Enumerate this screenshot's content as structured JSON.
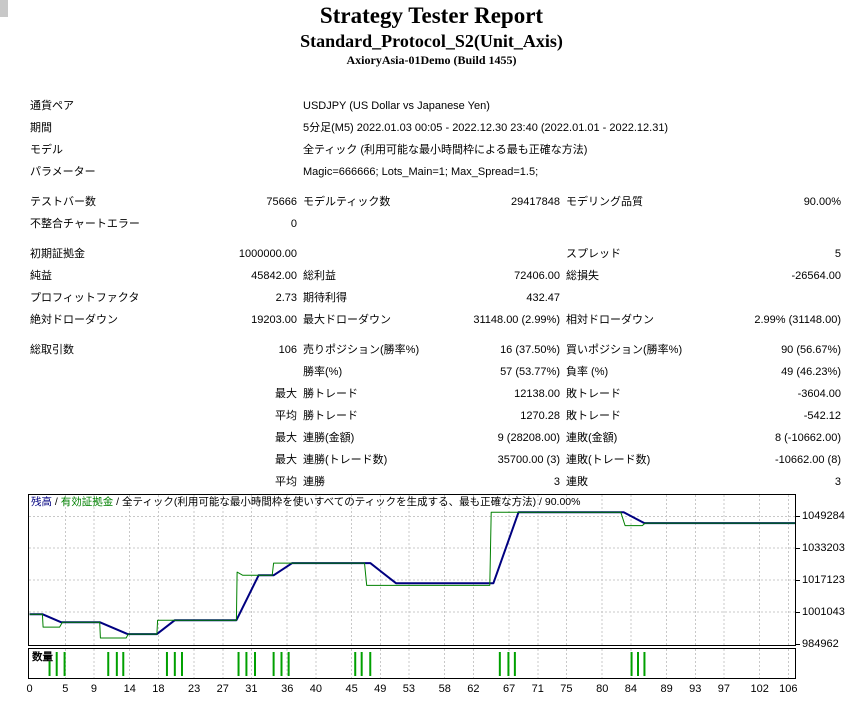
{
  "header": {
    "title": "Strategy Tester Report",
    "subtitle": "Standard_Protocol_S2(Unit_Axis)",
    "server": "AxioryAsia-01Demo (Build 1455)"
  },
  "report": {
    "rows": [
      {
        "cells": [
          {
            "c": "label",
            "t": "通貨ペア"
          },
          {
            "c": "wide",
            "t": "USDJPY (US Dollar vs Japanese Yen)"
          }
        ]
      },
      {
        "cells": [
          {
            "c": "label",
            "t": "期間"
          },
          {
            "c": "wide",
            "t": "5分足(M5) 2022.01.03 00:05 - 2022.12.30 23:40 (2022.01.01 - 2022.12.31)"
          }
        ]
      },
      {
        "cells": [
          {
            "c": "label",
            "t": "モデル"
          },
          {
            "c": "wide",
            "t": "全ティック (利用可能な最小時間枠による最も正確な方法)"
          }
        ]
      },
      {
        "cells": [
          {
            "c": "label",
            "t": "パラメーター"
          },
          {
            "c": "wide",
            "t": "Magic=666666; Lots_Main=1; Max_Spread=1.5;"
          }
        ]
      },
      {
        "gap": true
      },
      {
        "cells": [
          {
            "c": "l1",
            "t": "テストバー数"
          },
          {
            "c": "v1",
            "t": "75666"
          },
          {
            "c": "l2",
            "t": "モデルティック数"
          },
          {
            "c": "v2",
            "t": "29417848"
          },
          {
            "c": "l3",
            "t": "モデリング品質"
          },
          {
            "c": "v3",
            "t": "90.00%"
          }
        ]
      },
      {
        "cells": [
          {
            "c": "l1",
            "t": "不整合チャートエラー"
          },
          {
            "c": "v1",
            "t": "0"
          }
        ]
      },
      {
        "gap": true
      },
      {
        "cells": [
          {
            "c": "l1",
            "t": "初期証拠金"
          },
          {
            "c": "v1",
            "t": "1000000.00"
          },
          {
            "c": "l3",
            "t": "スプレッド"
          },
          {
            "c": "v3",
            "t": "5"
          }
        ]
      },
      {
        "cells": [
          {
            "c": "l1",
            "t": "純益"
          },
          {
            "c": "v1",
            "t": "45842.00"
          },
          {
            "c": "l2",
            "t": "総利益"
          },
          {
            "c": "v2",
            "t": "72406.00"
          },
          {
            "c": "l3",
            "t": "総損失"
          },
          {
            "c": "v3",
            "t": "-26564.00"
          }
        ]
      },
      {
        "cells": [
          {
            "c": "l1",
            "t": "プロフィットファクタ"
          },
          {
            "c": "v1",
            "t": "2.73"
          },
          {
            "c": "l2",
            "t": "期待利得"
          },
          {
            "c": "v2",
            "t": "432.47"
          }
        ]
      },
      {
        "cells": [
          {
            "c": "l1",
            "t": "絶対ドローダウン"
          },
          {
            "c": "v1",
            "t": "19203.00"
          },
          {
            "c": "l2",
            "t": "最大ドローダウン"
          },
          {
            "c": "v2",
            "t": "31148.00 (2.99%)"
          },
          {
            "c": "l3",
            "t": "相対ドローダウン"
          },
          {
            "c": "v3",
            "t": "2.99% (31148.00)"
          }
        ]
      },
      {
        "gap": true
      },
      {
        "cells": [
          {
            "c": "l1",
            "t": "総取引数"
          },
          {
            "c": "v1",
            "t": "106"
          },
          {
            "c": "l2",
            "t": "売りポジション(勝率%)"
          },
          {
            "c": "v2",
            "t": "16 (37.50%)"
          },
          {
            "c": "l3",
            "t": "買いポジション(勝率%)"
          },
          {
            "c": "v3",
            "t": "90 (56.67%)"
          }
        ]
      },
      {
        "cells": [
          {
            "c": "l2",
            "t": "勝率(%)"
          },
          {
            "c": "v2",
            "t": "57 (53.77%)"
          },
          {
            "c": "l3",
            "t": "負率 (%)"
          },
          {
            "c": "v3",
            "t": "49 (46.23%)"
          }
        ]
      },
      {
        "cells": [
          {
            "c": "v1",
            "t": "最大"
          },
          {
            "c": "l2",
            "t": "勝トレード"
          },
          {
            "c": "v2",
            "t": "12138.00"
          },
          {
            "c": "l3",
            "t": "敗トレード"
          },
          {
            "c": "v3",
            "t": "-3604.00"
          }
        ]
      },
      {
        "cells": [
          {
            "c": "v1",
            "t": "平均"
          },
          {
            "c": "l2",
            "t": "勝トレード"
          },
          {
            "c": "v2",
            "t": "1270.28"
          },
          {
            "c": "l3",
            "t": "敗トレード"
          },
          {
            "c": "v3",
            "t": "-542.12"
          }
        ]
      },
      {
        "cells": [
          {
            "c": "v1",
            "t": "最大"
          },
          {
            "c": "l2",
            "t": "連勝(金額)"
          },
          {
            "c": "v2",
            "t": "9 (28208.00)"
          },
          {
            "c": "l3",
            "t": "連敗(金額)"
          },
          {
            "c": "v3",
            "t": "8 (-10662.00)"
          }
        ]
      },
      {
        "cells": [
          {
            "c": "v1",
            "t": "最大"
          },
          {
            "c": "l2",
            "t": "連勝(トレード数)"
          },
          {
            "c": "v2",
            "t": "35700.00 (3)"
          },
          {
            "c": "l3",
            "t": "連敗(トレード数)"
          },
          {
            "c": "v3",
            "t": "-10662.00 (8)"
          }
        ]
      },
      {
        "cells": [
          {
            "c": "v1",
            "t": "平均"
          },
          {
            "c": "l2",
            "t": "連勝"
          },
          {
            "c": "v2",
            "t": "3"
          },
          {
            "c": "l3",
            "t": "連敗"
          },
          {
            "c": "v3",
            "t": "3"
          }
        ]
      }
    ]
  },
  "chart_data": {
    "type": "line",
    "legend": [
      {
        "text": "残高",
        "color": "#000080"
      },
      {
        "text": "有効証拠金",
        "color": "#008000"
      },
      {
        "text": "全ティック(利用可能な最小時間枠を使いすべてのティックを生成する、最も正確な方法)",
        "color": "#000000"
      },
      {
        "text": "90.00%",
        "color": "#000000"
      }
    ],
    "separator": " / ",
    "x_ticks": [
      0,
      5,
      9,
      14,
      18,
      23,
      27,
      31,
      36,
      40,
      45,
      49,
      53,
      58,
      62,
      67,
      71,
      75,
      80,
      84,
      89,
      93,
      97,
      102,
      106
    ],
    "y_ticks": [
      1049284,
      1033203,
      1017123,
      1001043,
      984962
    ],
    "xlim": [
      0,
      107
    ],
    "ylim": [
      984500,
      1060000
    ],
    "grid": true,
    "grid_color": "#c8c8c8",
    "series": [
      {
        "name": "残高",
        "color": "#000080",
        "width": 2,
        "points": [
          [
            0,
            1000000
          ],
          [
            1.8,
            1000000
          ],
          [
            4.4,
            996000
          ],
          [
            9.8,
            996000
          ],
          [
            13.7,
            990000
          ],
          [
            17.8,
            990000
          ],
          [
            20.3,
            997000
          ],
          [
            28.9,
            997000
          ],
          [
            32.0,
            1019600
          ],
          [
            34.1,
            1019600
          ],
          [
            36.7,
            1025700
          ],
          [
            47.6,
            1025700
          ],
          [
            51.2,
            1015600
          ],
          [
            64.8,
            1015600
          ],
          [
            68.3,
            1051300
          ],
          [
            83.0,
            1051300
          ],
          [
            85.9,
            1045842
          ],
          [
            107,
            1045842
          ]
        ]
      },
      {
        "name": "有効証拠金",
        "color": "#008000",
        "width": 1,
        "points": [
          [
            0,
            1000000
          ],
          [
            1.8,
            1000000
          ],
          [
            1.9,
            993500
          ],
          [
            4.2,
            993500
          ],
          [
            4.6,
            996000
          ],
          [
            9.8,
            996000
          ],
          [
            9.9,
            988000
          ],
          [
            13.5,
            988000
          ],
          [
            13.8,
            990000
          ],
          [
            17.8,
            990000
          ],
          [
            17.9,
            997000
          ],
          [
            28.9,
            997000
          ],
          [
            29.0,
            1021200
          ],
          [
            29.8,
            1019600
          ],
          [
            33.9,
            1019600
          ],
          [
            34.1,
            1025700
          ],
          [
            46.8,
            1025700
          ],
          [
            47.1,
            1014500
          ],
          [
            64.3,
            1014500
          ],
          [
            64.5,
            1051300
          ],
          [
            82.6,
            1051300
          ],
          [
            83.2,
            1044600
          ],
          [
            85.6,
            1044600
          ],
          [
            86.0,
            1045842
          ],
          [
            107,
            1045842
          ]
        ]
      }
    ],
    "volume": {
      "label": "数量",
      "color": "#00a000",
      "bars": [
        [
          2.8,
          0.62
        ],
        [
          3.8,
          1
        ],
        [
          4.9,
          1
        ],
        [
          11,
          1
        ],
        [
          12.2,
          1
        ],
        [
          13.1,
          1
        ],
        [
          19.2,
          1
        ],
        [
          20.3,
          1
        ],
        [
          21.3,
          1
        ],
        [
          29.2,
          1
        ],
        [
          30.3,
          1
        ],
        [
          31.5,
          1
        ],
        [
          34.1,
          1
        ],
        [
          35.2,
          1
        ],
        [
          36.2,
          1
        ],
        [
          45.5,
          1
        ],
        [
          46.4,
          1
        ],
        [
          47.6,
          1
        ],
        [
          65.7,
          1
        ],
        [
          66.9,
          1
        ],
        [
          67.8,
          1
        ],
        [
          84.1,
          1
        ],
        [
          85,
          1
        ],
        [
          85.9,
          1
        ]
      ]
    }
  }
}
